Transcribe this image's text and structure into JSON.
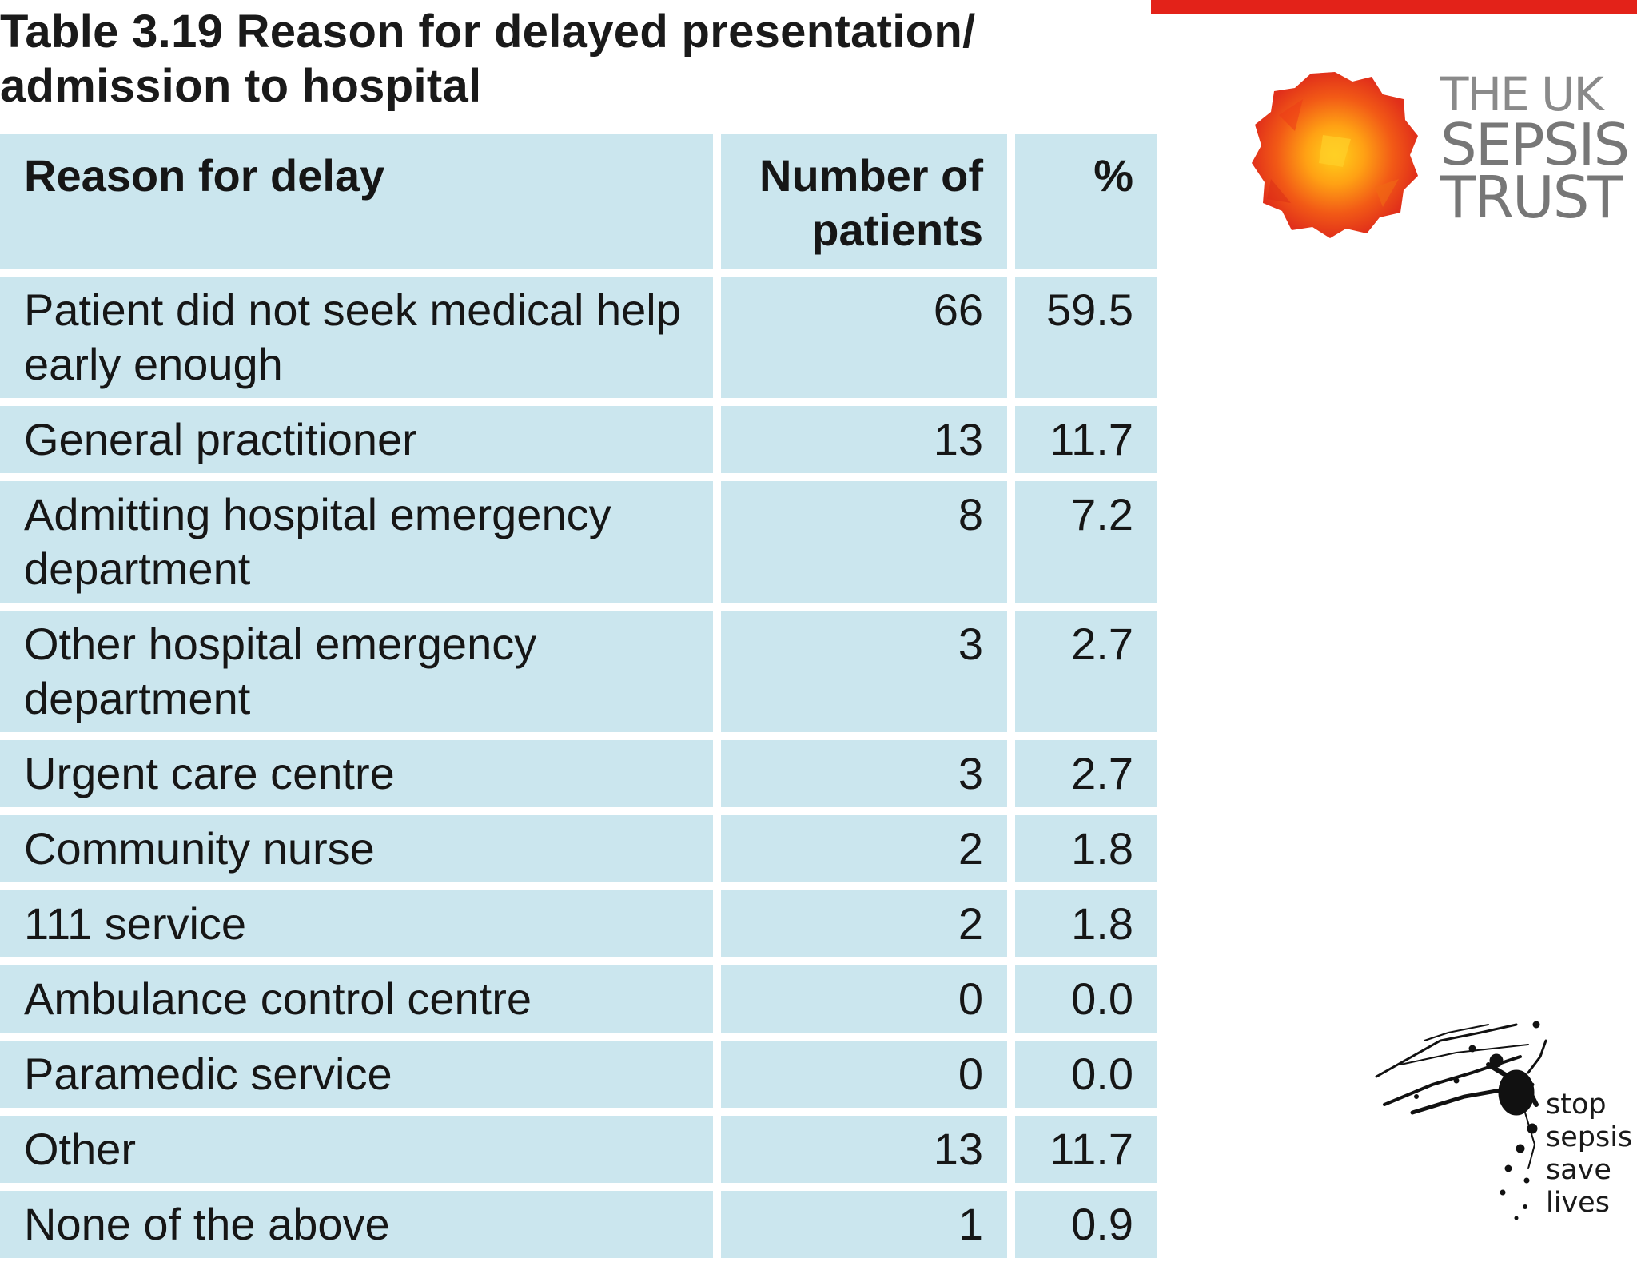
{
  "title": "Table 3.19 Reason for delayed presentation/ admission to hospital",
  "columns": {
    "reason": "Reason for delay",
    "number": "Number of patients",
    "percent": "%"
  },
  "rows": [
    {
      "reason": "Patient did not seek medical help early enough",
      "number": "66",
      "percent": "59.5"
    },
    {
      "reason": "General practitioner",
      "number": "13",
      "percent": "11.7"
    },
    {
      "reason": "Admitting hospital emergency department",
      "number": "8",
      "percent": "7.2"
    },
    {
      "reason": "Other hospital emergency department",
      "number": "3",
      "percent": "2.7"
    },
    {
      "reason": "Urgent care centre",
      "number": "3",
      "percent": "2.7"
    },
    {
      "reason": "Community nurse",
      "number": "2",
      "percent": "1.8"
    },
    {
      "reason": "111 service",
      "number": "2",
      "percent": "1.8"
    },
    {
      "reason": "Ambulance control centre",
      "number": "0",
      "percent": "0.0"
    },
    {
      "reason": "Paramedic service",
      "number": "0",
      "percent": "0.0"
    },
    {
      "reason": "Other",
      "number": "13",
      "percent": "11.7"
    },
    {
      "reason": "None of the above",
      "number": "1",
      "percent": "0.9"
    }
  ],
  "logo": {
    "line1": "THE UK",
    "line2": "SEPSIS",
    "line3": "TRUST"
  },
  "slogan": {
    "line1": "stop",
    "line2": "sepsis",
    "line3": "save",
    "line4": "lives"
  },
  "colors": {
    "accent_bar": "#e32219",
    "table_cell": "#cbe6ee",
    "logo_text": "#7b7b7b"
  }
}
